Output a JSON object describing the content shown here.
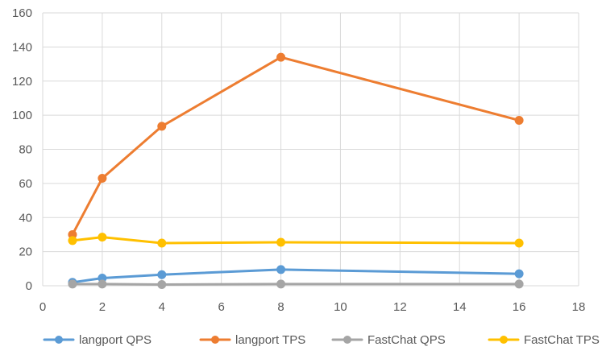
{
  "chart_data": {
    "type": "line",
    "title": "",
    "xlabel": "",
    "ylabel": "",
    "xlim": [
      0,
      18
    ],
    "ylim": [
      0,
      160
    ],
    "xticks": [
      0,
      2,
      4,
      6,
      8,
      10,
      12,
      14,
      16,
      18
    ],
    "yticks": [
      0,
      20,
      40,
      60,
      80,
      100,
      120,
      140,
      160
    ],
    "grid": true,
    "legend_position": "bottom",
    "x": [
      1,
      2,
      4,
      8,
      16
    ],
    "series": [
      {
        "name": "langport QPS",
        "color": "#5B9BD5",
        "values": [
          2,
          4.5,
          6.5,
          9.5,
          7
        ]
      },
      {
        "name": "langport TPS",
        "color": "#ED7D31",
        "values": [
          30,
          63,
          93.5,
          134,
          97
        ]
      },
      {
        "name": "FastChat QPS",
        "color": "#A5A5A5",
        "values": [
          1,
          1,
          0.7,
          1,
          1
        ]
      },
      {
        "name": "FastChat TPS",
        "color": "#FFC000",
        "values": [
          26.5,
          28.5,
          25,
          25.5,
          25
        ]
      }
    ]
  }
}
